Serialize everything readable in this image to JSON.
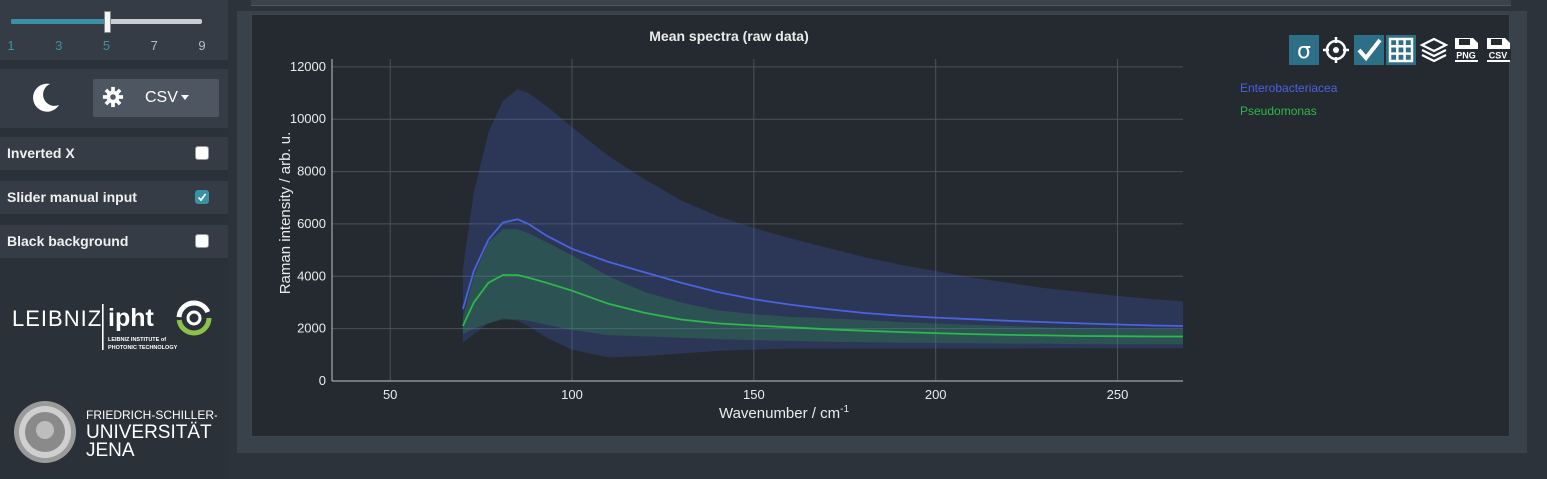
{
  "slider": {
    "ticks": [
      "1",
      "3",
      "5",
      "7",
      "9"
    ],
    "value": 5,
    "min": 1,
    "max": 9
  },
  "controls": {
    "theme_icon": "moon-icon",
    "settings_icon": "gear-icon",
    "export_label": "CSV"
  },
  "options": [
    {
      "label": "Inverted X",
      "checked": false
    },
    {
      "label": "Slider manual input",
      "checked": true
    },
    {
      "label": "Black background",
      "checked": false
    }
  ],
  "logos": {
    "leibniz_text": "LEIBNIZ | ipht",
    "leibniz_sub": "LEIBNIZ INSTITUTE of PHOTONIC TECHNOLOGY",
    "jena_text": "FRIEDRICH-SCHILLER-UNIVERSITÄT JENA"
  },
  "toolbar": [
    "sigma-icon",
    "crosshair-icon",
    "check-icon",
    "grid-icon",
    "layers-icon",
    "save-png-icon",
    "save-csv-icon"
  ],
  "colors": {
    "accent": "#3a90a6",
    "series1": "#4a63e0",
    "series2": "#2db84a"
  },
  "chart_data": {
    "type": "line",
    "title": "Mean spectra (raw data)",
    "xlabel": "Wavenumber / cm",
    "xlabel_sup": "-1",
    "ylabel": "Raman intensity / arb. u.",
    "xlim": [
      34,
      268
    ],
    "ylim": [
      0,
      12300
    ],
    "xticks": [
      50,
      100,
      150,
      200,
      250
    ],
    "yticks": [
      0,
      2000,
      4000,
      6000,
      8000,
      10000,
      12000
    ],
    "grid": true,
    "legend_position": "top-right",
    "series": [
      {
        "name": "Enterobacteriacea",
        "color": "#4a63e0",
        "x": [
          70,
          73,
          77,
          81,
          85,
          88,
          93,
          100,
          110,
          120,
          130,
          140,
          150,
          160,
          170,
          180,
          190,
          200,
          210,
          220,
          230,
          240,
          250,
          260,
          268
        ],
        "y": [
          2750,
          4200,
          5400,
          6050,
          6180,
          6000,
          5550,
          5050,
          4550,
          4150,
          3750,
          3400,
          3120,
          2920,
          2750,
          2600,
          2500,
          2420,
          2360,
          2300,
          2250,
          2200,
          2160,
          2120,
          2100
        ],
        "upper": [
          4300,
          7200,
          9500,
          10700,
          11150,
          11000,
          10500,
          9700,
          8600,
          7700,
          6900,
          6300,
          5850,
          5450,
          5100,
          4750,
          4450,
          4200,
          3950,
          3750,
          3550,
          3400,
          3250,
          3120,
          3050
        ],
        "lower": [
          1450,
          1800,
          2200,
          2400,
          2300,
          2100,
          1650,
          1200,
          900,
          950,
          1050,
          1150,
          1200,
          1230,
          1230,
          1240,
          1240,
          1240,
          1240,
          1240,
          1250,
          1250,
          1250,
          1250,
          1250
        ]
      },
      {
        "name": "Pseudomonas",
        "color": "#2db84a",
        "x": [
          70,
          73,
          77,
          81,
          85,
          88,
          93,
          100,
          110,
          120,
          130,
          140,
          150,
          160,
          170,
          180,
          190,
          200,
          210,
          220,
          230,
          240,
          250,
          260,
          268
        ],
        "y": [
          2100,
          3000,
          3750,
          4050,
          4050,
          3950,
          3750,
          3450,
          2950,
          2600,
          2350,
          2200,
          2120,
          2050,
          1980,
          1920,
          1870,
          1830,
          1790,
          1760,
          1740,
          1720,
          1710,
          1700,
          1700
        ],
        "upper": [
          2400,
          4000,
          5300,
          5800,
          5800,
          5650,
          5300,
          4800,
          4000,
          3400,
          3000,
          2700,
          2550,
          2450,
          2400,
          2330,
          2250,
          2200,
          2150,
          2100,
          2050,
          2020,
          2000,
          1990,
          1980
        ],
        "lower": [
          1800,
          2000,
          2200,
          2350,
          2350,
          2300,
          2150,
          1950,
          1750,
          1700,
          1650,
          1600,
          1560,
          1530,
          1500,
          1480,
          1460,
          1450,
          1440,
          1430,
          1420,
          1410,
          1400,
          1400,
          1400
        ]
      }
    ]
  }
}
